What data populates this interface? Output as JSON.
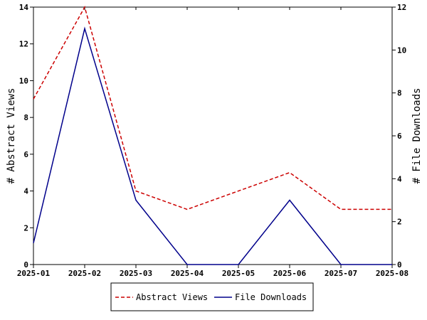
{
  "chart_data": {
    "type": "line",
    "x": [
      "2025-01",
      "2025-02",
      "2025-03",
      "2025-04",
      "2025-05",
      "2025-06",
      "2025-07",
      "2025-08"
    ],
    "y_left_label": "# Abstract Views",
    "y_right_label": "# File Downloads",
    "y_left_lim": [
      0,
      14
    ],
    "y_right_lim": [
      0,
      12
    ],
    "y_left_ticks": [
      "0",
      "2",
      "4",
      "6",
      "8",
      "10",
      "12",
      "14"
    ],
    "y_right_ticks": [
      "0",
      "2",
      "4",
      "6",
      "8",
      "10",
      "12"
    ],
    "grid": false,
    "legend_position": "bottom-center",
    "series": [
      {
        "name": "Abstract Views",
        "axis": "left",
        "color": "#cc0000",
        "dash": "dashed",
        "values": [
          9,
          14,
          4,
          3,
          4,
          5,
          3,
          3
        ]
      },
      {
        "name": "File Downloads",
        "axis": "right",
        "color": "#00008b",
        "dash": "solid",
        "values": [
          1,
          11,
          3,
          0,
          0,
          3,
          0,
          0
        ]
      }
    ]
  }
}
